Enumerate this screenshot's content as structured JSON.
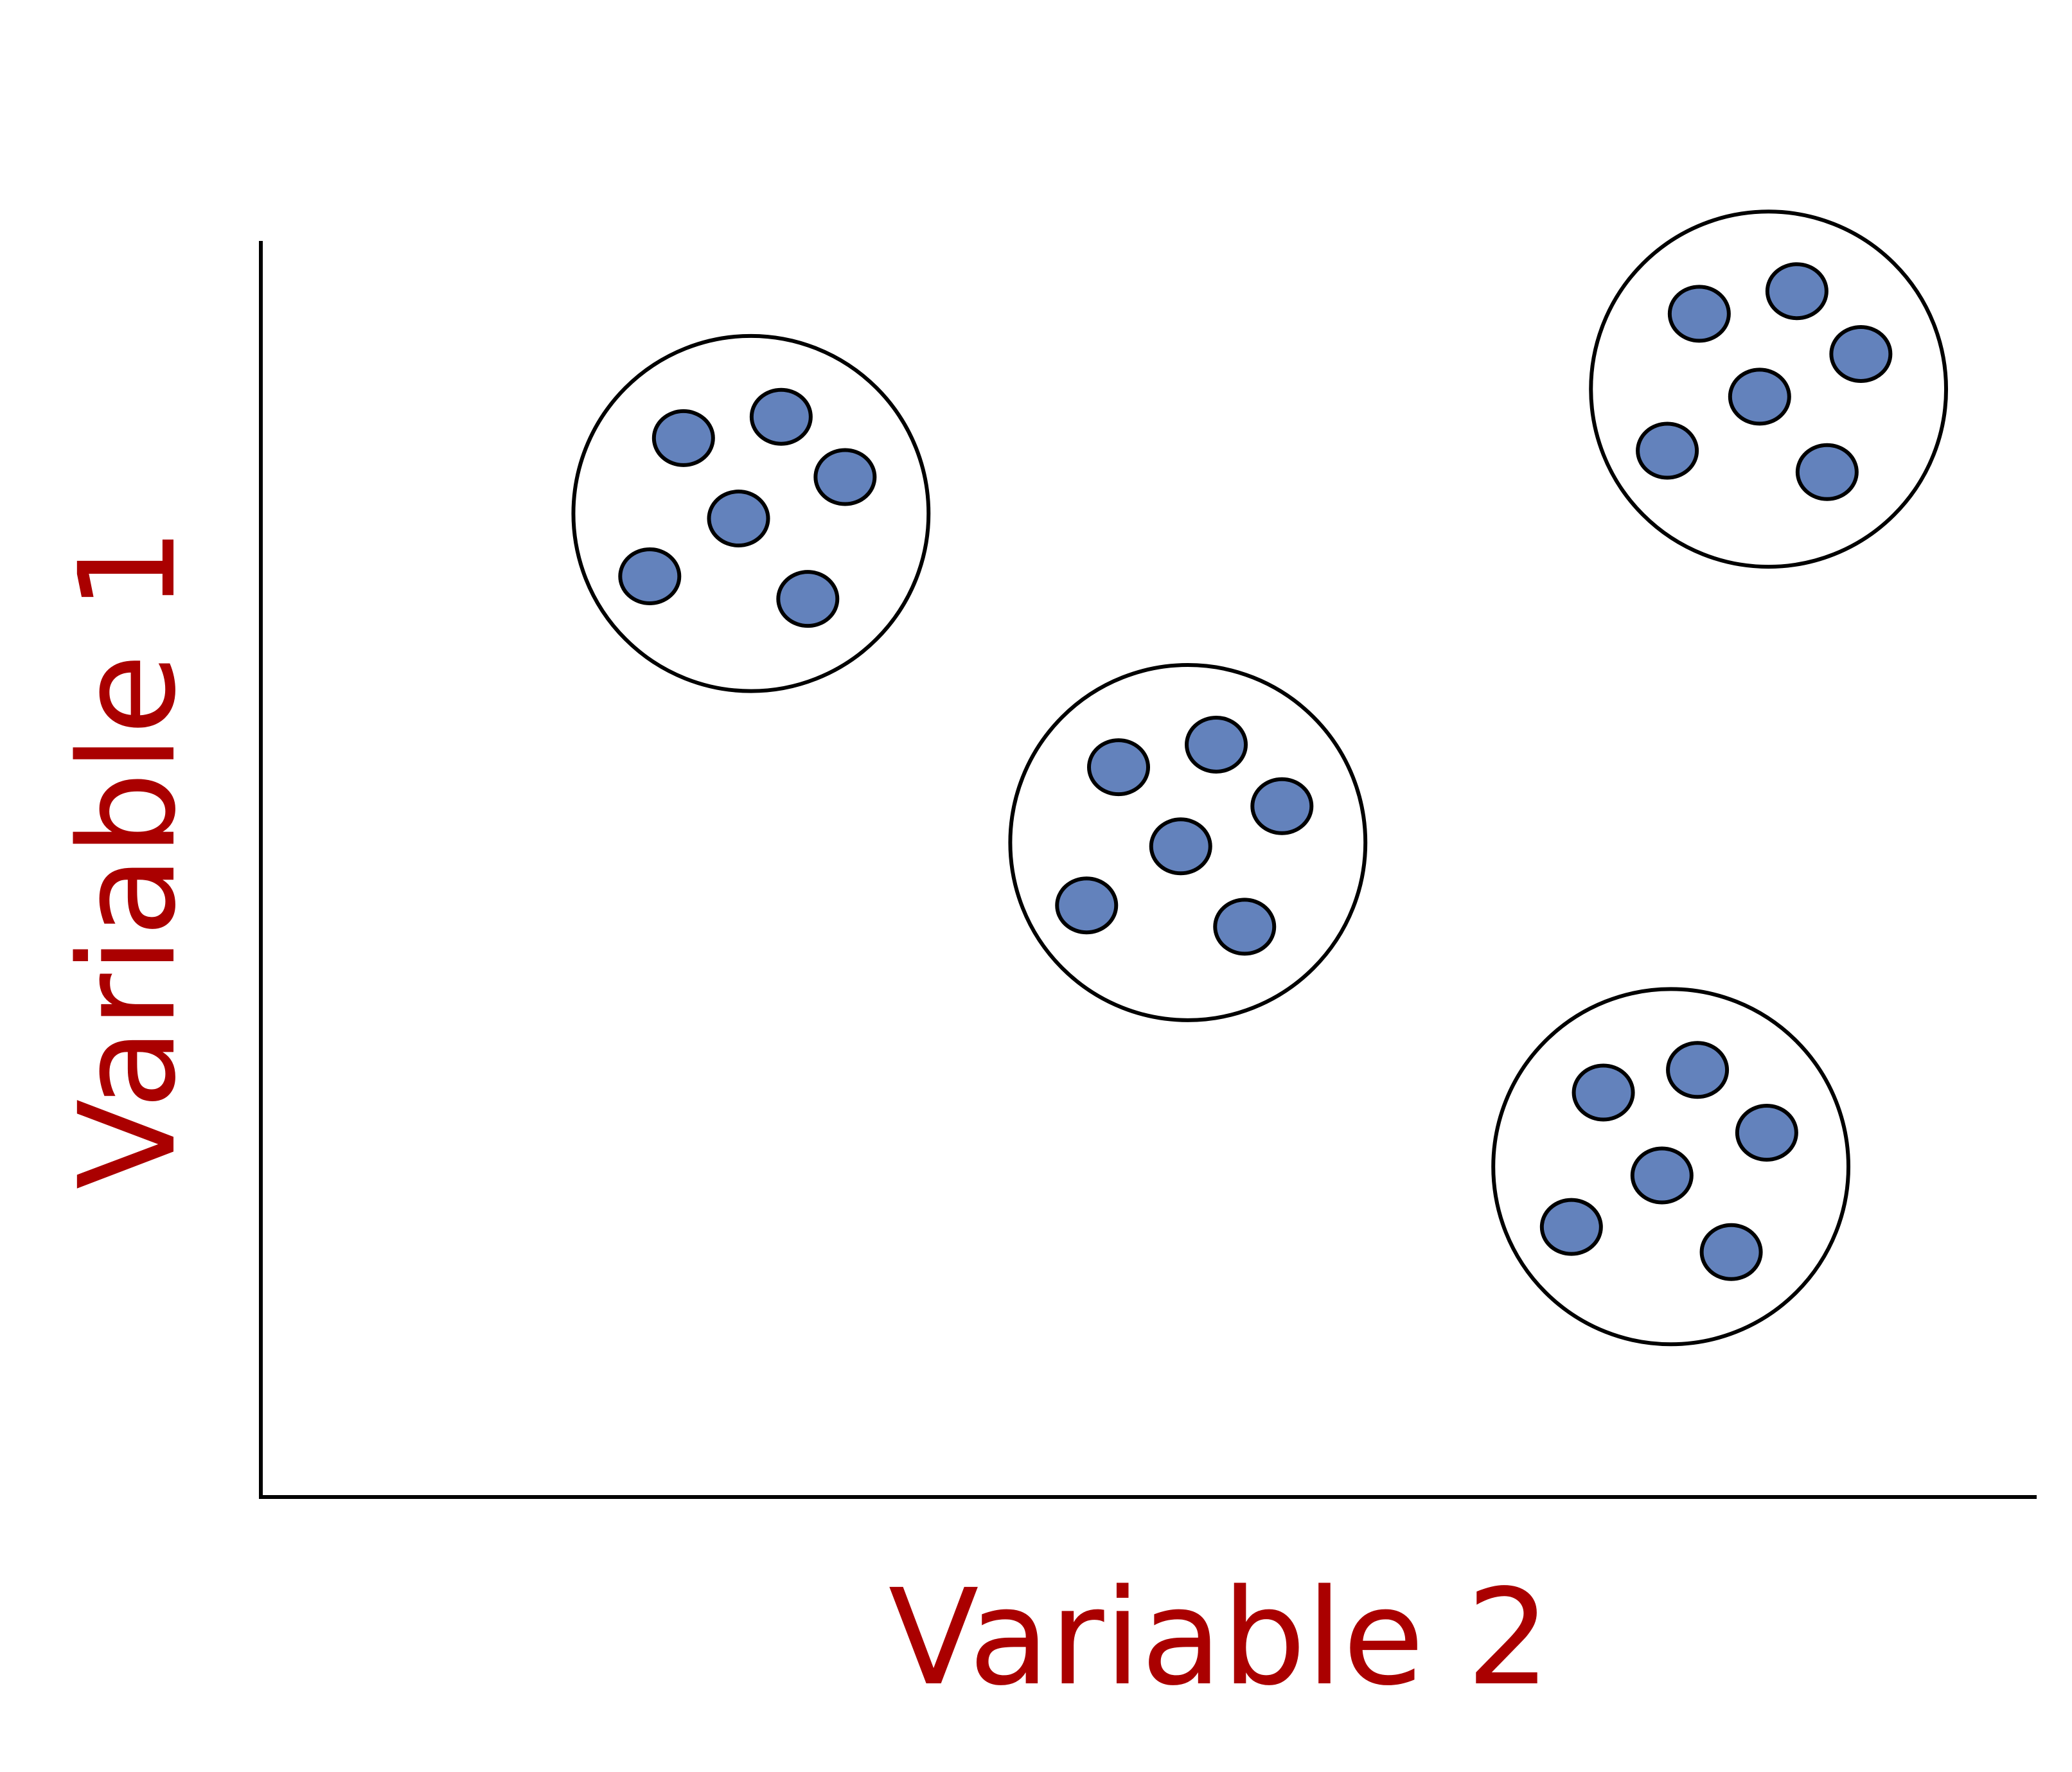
{
  "chart_data": {
    "type": "scatter",
    "title": "",
    "xlabel": "Variable 2",
    "ylabel": "Variable 1",
    "xlim": [
      0,
      100
    ],
    "ylim": [
      0,
      100
    ],
    "grid": false,
    "ticks": false,
    "colors": {
      "point_fill": "#6382BC",
      "outline": "#000000",
      "label": "#AA0000",
      "background": "#FFFFFF"
    },
    "clusters": [
      {
        "circle": {
          "cx": 27.6,
          "cy": 78.3,
          "r": 10.0
        },
        "points": [
          {
            "x": 23.8,
            "y": 84.3
          },
          {
            "x": 29.3,
            "y": 86.0
          },
          {
            "x": 32.9,
            "y": 81.2
          },
          {
            "x": 26.9,
            "y": 77.9
          },
          {
            "x": 21.9,
            "y": 73.3
          },
          {
            "x": 30.8,
            "y": 71.5
          }
        ]
      },
      {
        "circle": {
          "cx": 52.2,
          "cy": 52.1,
          "r": 10.0
        },
        "points": [
          {
            "x": 48.3,
            "y": 58.1
          },
          {
            "x": 53.8,
            "y": 59.9
          },
          {
            "x": 57.5,
            "y": 55.0
          },
          {
            "x": 51.8,
            "y": 51.8
          },
          {
            "x": 46.5,
            "y": 47.1
          },
          {
            "x": 55.4,
            "y": 45.4
          }
        ]
      },
      {
        "circle": {
          "cx": 84.9,
          "cy": 88.2,
          "r": 10.0
        },
        "points": [
          {
            "x": 81.0,
            "y": 94.2
          },
          {
            "x": 86.5,
            "y": 96.0
          },
          {
            "x": 90.1,
            "y": 91.0
          },
          {
            "x": 84.4,
            "y": 87.6
          },
          {
            "x": 79.2,
            "y": 83.3
          },
          {
            "x": 88.2,
            "y": 81.6
          }
        ]
      },
      {
        "circle": {
          "cx": 79.4,
          "cy": 26.3,
          "r": 10.0
        },
        "points": [
          {
            "x": 75.6,
            "y": 32.2
          },
          {
            "x": 80.9,
            "y": 34.0
          },
          {
            "x": 84.8,
            "y": 29.0
          },
          {
            "x": 78.9,
            "y": 25.6
          },
          {
            "x": 73.8,
            "y": 21.5
          },
          {
            "x": 82.8,
            "y": 19.5
          }
        ]
      }
    ]
  }
}
